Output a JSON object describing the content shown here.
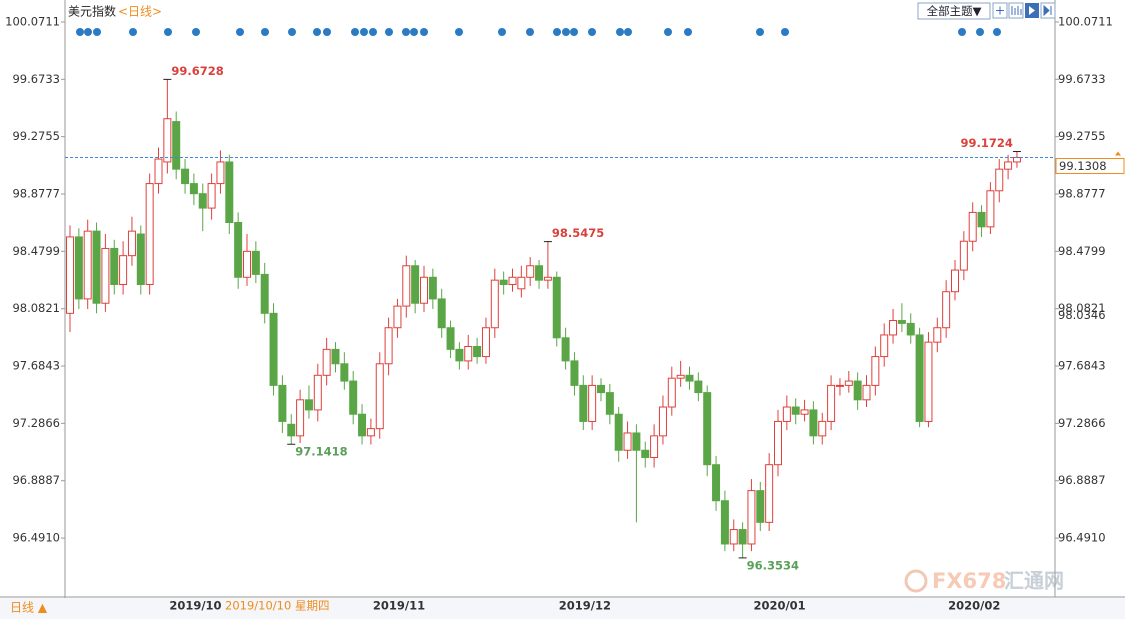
{
  "chart_data": {
    "type": "candlestick",
    "title": "美元指数",
    "subtitle": "<日线>",
    "theme_button": "全部主题▼",
    "period_button": "日线 ▲",
    "cursor_label": "2019/10/10 星期四",
    "watermark": {
      "brand": "FX678",
      "name": "汇通网"
    },
    "up_color": "#e0403c",
    "down_color": "#5aa646",
    "last_line_color": "#3a8ad8",
    "marker_color": "#f08c1e",
    "marker_price": 98.0346,
    "ylim": [
      96.096,
      100.168
    ],
    "yticks": [
      100.0711,
      99.6733,
      99.2755,
      98.8777,
      98.4799,
      98.0821,
      97.6843,
      97.2866,
      96.8887,
      {
        "value": 96.491,
        "label": "96.4910"
      }
    ],
    "extreme_labels": [
      [
        "high",
        11
      ],
      [
        "low",
        25
      ],
      [
        "high",
        54
      ],
      [
        "low",
        76
      ],
      [
        "high",
        107
      ]
    ],
    "categories": [
      null,
      null,
      null,
      null,
      null,
      null,
      null,
      null,
      null,
      null,
      null,
      "2019/10",
      null,
      null,
      null,
      null,
      null,
      null,
      null,
      null,
      null,
      null,
      null,
      null,
      null,
      null,
      null,
      null,
      null,
      null,
      null,
      null,
      null,
      null,
      "2019/11",
      null,
      null,
      null,
      null,
      null,
      null,
      null,
      null,
      null,
      null,
      null,
      null,
      null,
      null,
      null,
      null,
      null,
      null,
      null,
      null,
      "2019/12",
      null,
      null,
      null,
      null,
      null,
      null,
      null,
      null,
      null,
      null,
      null,
      null,
      null,
      null,
      null,
      null,
      null,
      null,
      null,
      null,
      null,
      "2020/01",
      null,
      null,
      null,
      null,
      null,
      null,
      null,
      null,
      null,
      null,
      null,
      null,
      null,
      null,
      null,
      null,
      null,
      null,
      null,
      null,
      null,
      "2020/02",
      null,
      null,
      null,
      null,
      null,
      null,
      null,
      null
    ],
    "open": [
      98.05,
      98.58,
      98.15,
      98.62,
      98.12,
      98.5,
      98.25,
      98.45,
      98.6,
      98.25,
      98.95,
      99.1,
      99.38,
      99.05,
      98.95,
      98.88,
      98.78,
      98.95,
      99.1,
      98.68,
      98.3,
      98.48,
      98.32,
      98.05,
      97.55,
      97.28,
      97.2,
      97.45,
      97.38,
      97.62,
      97.8,
      97.7,
      97.58,
      97.35,
      97.2,
      97.25,
      97.7,
      97.95,
      98.1,
      98.38,
      98.12,
      98.3,
      98.15,
      97.95,
      97.8,
      97.72,
      97.82,
      97.75,
      97.95,
      98.28,
      98.25,
      98.22,
      98.3,
      98.38,
      98.28,
      98.3,
      97.88,
      97.72,
      97.55,
      97.3,
      97.55,
      97.5,
      97.35,
      97.1,
      97.22,
      97.1,
      97.05,
      97.2,
      97.4,
      97.6,
      97.62,
      97.58,
      97.5,
      97.0,
      96.75,
      96.45,
      96.55,
      96.45,
      96.82,
      96.6,
      97.0,
      97.3,
      97.4,
      97.35,
      97.38,
      97.2,
      97.3,
      97.55,
      97.55,
      97.58,
      97.45,
      97.55,
      97.75,
      97.9,
      98.0,
      97.98,
      97.9,
      97.3,
      97.85,
      97.95,
      98.2,
      98.35,
      98.55,
      98.75,
      98.65,
      98.9,
      99.05,
      99.1
    ],
    "high": [
      98.66,
      98.64,
      98.7,
      98.68,
      98.6,
      98.56,
      98.55,
      98.72,
      98.66,
      99.02,
      99.2,
      99.6728,
      99.45,
      99.12,
      99.02,
      98.95,
      99.02,
      99.18,
      99.15,
      98.75,
      98.6,
      98.55,
      98.4,
      98.12,
      97.62,
      97.35,
      97.52,
      97.55,
      97.7,
      97.88,
      97.85,
      97.78,
      97.65,
      97.42,
      97.32,
      97.78,
      98.02,
      98.15,
      98.45,
      98.42,
      98.38,
      98.36,
      98.22,
      98.0,
      97.85,
      97.9,
      97.88,
      98.02,
      98.36,
      98.34,
      98.36,
      98.38,
      98.44,
      98.42,
      98.5475,
      98.34,
      97.95,
      97.78,
      97.62,
      97.62,
      97.6,
      97.56,
      97.4,
      97.3,
      97.28,
      97.16,
      97.28,
      97.48,
      97.68,
      97.72,
      97.68,
      97.64,
      97.55,
      97.06,
      96.82,
      96.62,
      96.6,
      96.9,
      96.88,
      97.08,
      97.38,
      97.48,
      97.46,
      97.45,
      97.44,
      97.36,
      97.62,
      97.6,
      97.65,
      97.64,
      97.62,
      97.82,
      97.98,
      98.08,
      98.12,
      98.05,
      97.95,
      97.92,
      98.02,
      98.28,
      98.42,
      98.62,
      98.82,
      98.8,
      98.96,
      99.12,
      99.15,
      99.1724
    ],
    "low": [
      97.92,
      98.08,
      98.08,
      98.05,
      98.06,
      98.18,
      98.18,
      98.38,
      98.18,
      98.18,
      98.88,
      99.02,
      98.98,
      98.88,
      98.8,
      98.62,
      98.7,
      98.88,
      98.6,
      98.22,
      98.24,
      98.26,
      97.98,
      97.48,
      97.22,
      97.1418,
      97.15,
      97.32,
      97.3,
      97.55,
      97.64,
      97.52,
      97.28,
      97.14,
      97.14,
      97.18,
      97.62,
      97.88,
      98.02,
      98.05,
      98.06,
      98.08,
      97.88,
      97.74,
      97.66,
      97.66,
      97.7,
      97.7,
      97.88,
      98.18,
      98.2,
      98.16,
      98.24,
      98.22,
      98.22,
      97.82,
      97.66,
      97.48,
      97.24,
      97.24,
      97.44,
      97.28,
      97.02,
      97.04,
      96.6,
      96.98,
      96.98,
      97.14,
      97.34,
      97.54,
      97.52,
      97.44,
      96.92,
      96.68,
      96.4,
      96.4,
      96.3534,
      96.4,
      96.54,
      96.54,
      96.92,
      97.24,
      97.28,
      97.3,
      97.14,
      97.14,
      97.24,
      97.48,
      97.5,
      97.38,
      97.4,
      97.48,
      97.68,
      97.84,
      97.92,
      97.84,
      97.26,
      97.26,
      97.78,
      97.88,
      98.14,
      98.28,
      98.48,
      98.58,
      98.6,
      98.82,
      98.98,
      99.06
    ],
    "close": [
      98.58,
      98.15,
      98.62,
      98.12,
      98.5,
      98.25,
      98.45,
      98.62,
      98.25,
      98.95,
      99.12,
      99.4,
      99.05,
      98.95,
      98.88,
      98.78,
      98.95,
      99.1,
      98.68,
      98.3,
      98.48,
      98.32,
      98.05,
      97.55,
      97.3,
      97.2,
      97.45,
      97.38,
      97.62,
      97.8,
      97.7,
      97.58,
      97.35,
      97.2,
      97.25,
      97.7,
      97.95,
      98.1,
      98.38,
      98.12,
      98.3,
      98.15,
      97.95,
      97.8,
      97.72,
      97.82,
      97.75,
      97.95,
      98.28,
      98.25,
      98.3,
      98.3,
      98.38,
      98.28,
      98.3,
      97.88,
      97.72,
      97.55,
      97.3,
      97.55,
      97.5,
      97.35,
      97.1,
      97.22,
      97.1,
      97.05,
      97.2,
      97.4,
      97.6,
      97.62,
      97.58,
      97.5,
      97.0,
      96.75,
      96.45,
      96.55,
      96.45,
      96.82,
      96.6,
      97.0,
      97.3,
      97.4,
      97.35,
      97.38,
      97.2,
      97.3,
      97.55,
      97.55,
      97.58,
      97.45,
      97.55,
      97.75,
      97.9,
      98.0,
      97.98,
      97.9,
      97.3,
      97.85,
      97.95,
      98.2,
      98.35,
      98.55,
      98.75,
      98.65,
      98.9,
      99.05,
      99.1,
      99.1308
    ]
  }
}
